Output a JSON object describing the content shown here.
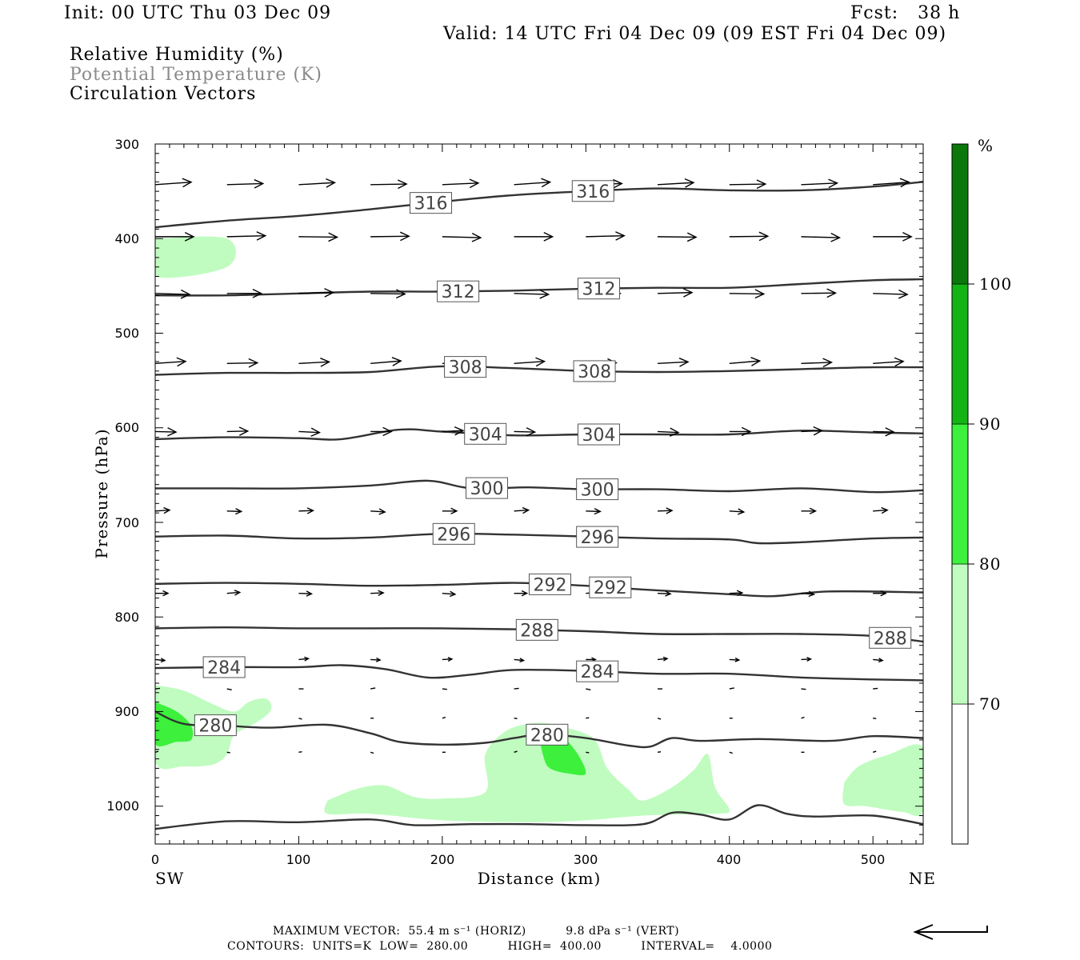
{
  "header": {
    "init": "Init: 00 UTC Thu 03 Dec 09",
    "fcst": "Fcst:   38 h",
    "valid": "Valid: 14 UTC Fri 04 Dec 09 (09 EST Fri 04 Dec 09)",
    "field1": "Relative Humidity (%)",
    "field2": "Potential Temperature (K)",
    "field3": "Circulation Vectors"
  },
  "axes": {
    "ylabel": "Pressure (hPa)",
    "xlabel": "Distance (km)",
    "left_end": "SW",
    "right_end": "NE",
    "x_ticks": [
      "0",
      "100",
      "200",
      "300",
      "400",
      "500"
    ],
    "y_ticks": [
      "300",
      "400",
      "500",
      "600",
      "700",
      "800",
      "900",
      "1000"
    ]
  },
  "colorbar": {
    "unit": "%",
    "levels": [
      "70",
      "80",
      "90",
      "100"
    ],
    "colors": [
      "#ffffff",
      "#c0fcc0",
      "#3cf03c",
      "#14b414",
      "#0a780a"
    ]
  },
  "footer": {
    "line1": "MAXIMUM VECTOR:  55.4 m s⁻¹ (HORIZ)          9.8 dPa s⁻¹ (VERT)",
    "line2": "CONTOURS:  UNITS=K  LOW=  280.00          HIGH=  400.00          INTERVAL=    4.0000"
  },
  "chart_data": {
    "type": "contour",
    "xlim": [
      0,
      535
    ],
    "ylim": [
      1040,
      300
    ],
    "y_scale": "linear-pressure",
    "isentropes": [
      {
        "theta": 316,
        "label_x": [
          192,
          305
        ],
        "points": [
          [
            0,
            388
          ],
          [
            50,
            381
          ],
          [
            100,
            376
          ],
          [
            150,
            369
          ],
          [
            200,
            361
          ],
          [
            250,
            354
          ],
          [
            300,
            350
          ],
          [
            350,
            347
          ],
          [
            400,
            349
          ],
          [
            450,
            349
          ],
          [
            500,
            345
          ],
          [
            535,
            340
          ]
        ]
      },
      {
        "theta": 312,
        "label_x": [
          211,
          309
        ],
        "points": [
          [
            0,
            460
          ],
          [
            50,
            460
          ],
          [
            100,
            458
          ],
          [
            150,
            456
          ],
          [
            200,
            456
          ],
          [
            250,
            455
          ],
          [
            300,
            453
          ],
          [
            350,
            452
          ],
          [
            400,
            452
          ],
          [
            450,
            448
          ],
          [
            500,
            444
          ],
          [
            535,
            443
          ]
        ]
      },
      {
        "theta": 308,
        "label_x": [
          216,
          306
        ],
        "points": [
          [
            0,
            544
          ],
          [
            50,
            542
          ],
          [
            100,
            542
          ],
          [
            150,
            541
          ],
          [
            200,
            535
          ],
          [
            250,
            537
          ],
          [
            300,
            540
          ],
          [
            350,
            541
          ],
          [
            400,
            540
          ],
          [
            450,
            538
          ],
          [
            500,
            536
          ],
          [
            535,
            536
          ]
        ]
      },
      {
        "theta": 304,
        "label_x": [
          230,
          309
        ],
        "points": [
          [
            0,
            612
          ],
          [
            50,
            610
          ],
          [
            100,
            611
          ],
          [
            130,
            612
          ],
          [
            170,
            602
          ],
          [
            200,
            604
          ],
          [
            250,
            608
          ],
          [
            300,
            607
          ],
          [
            350,
            607
          ],
          [
            400,
            607
          ],
          [
            450,
            603
          ],
          [
            500,
            605
          ],
          [
            535,
            606
          ]
        ]
      },
      {
        "theta": 300,
        "label_x": [
          231,
          308
        ],
        "points": [
          [
            0,
            664
          ],
          [
            50,
            664
          ],
          [
            100,
            664
          ],
          [
            150,
            661
          ],
          [
            190,
            656
          ],
          [
            220,
            664
          ],
          [
            260,
            663
          ],
          [
            300,
            665
          ],
          [
            350,
            665
          ],
          [
            400,
            667
          ],
          [
            450,
            664
          ],
          [
            500,
            668
          ],
          [
            535,
            666
          ]
        ]
      },
      {
        "theta": 296,
        "label_x": [
          208,
          308
        ],
        "points": [
          [
            0,
            715
          ],
          [
            50,
            714
          ],
          [
            100,
            717
          ],
          [
            150,
            716
          ],
          [
            200,
            712
          ],
          [
            250,
            713
          ],
          [
            300,
            715
          ],
          [
            350,
            717
          ],
          [
            400,
            718
          ],
          [
            420,
            722
          ],
          [
            450,
            721
          ],
          [
            500,
            717
          ],
          [
            535,
            716
          ]
        ]
      },
      {
        "theta": 292,
        "label_x": [
          275,
          317
        ],
        "points": [
          [
            0,
            765
          ],
          [
            50,
            764
          ],
          [
            100,
            765
          ],
          [
            150,
            767
          ],
          [
            200,
            766
          ],
          [
            250,
            764
          ],
          [
            300,
            767
          ],
          [
            340,
            771
          ],
          [
            400,
            776
          ],
          [
            430,
            778
          ],
          [
            470,
            773
          ],
          [
            535,
            774
          ]
        ]
      },
      {
        "theta": 288,
        "label_x": [
          266,
          512
        ],
        "points": [
          [
            0,
            812
          ],
          [
            50,
            811
          ],
          [
            100,
            812
          ],
          [
            150,
            812
          ],
          [
            200,
            812
          ],
          [
            250,
            813
          ],
          [
            300,
            815
          ],
          [
            350,
            818
          ],
          [
            400,
            818
          ],
          [
            450,
            818
          ],
          [
            500,
            820
          ],
          [
            535,
            826
          ]
        ]
      },
      {
        "theta": 284,
        "label_x": [
          48,
          308
        ],
        "points": [
          [
            0,
            854
          ],
          [
            50,
            853
          ],
          [
            100,
            853
          ],
          [
            130,
            851
          ],
          [
            160,
            855
          ],
          [
            190,
            864
          ],
          [
            220,
            861
          ],
          [
            250,
            856
          ],
          [
            300,
            857
          ],
          [
            350,
            860
          ],
          [
            400,
            860
          ],
          [
            450,
            864
          ],
          [
            500,
            866
          ],
          [
            535,
            867
          ]
        ]
      },
      {
        "theta": 280,
        "label_x": [
          42,
          273
        ],
        "points": [
          [
            0,
            900
          ],
          [
            20,
            913
          ],
          [
            50,
            915
          ],
          [
            80,
            917
          ],
          [
            120,
            914
          ],
          [
            150,
            923
          ],
          [
            170,
            932
          ],
          [
            200,
            935
          ],
          [
            230,
            933
          ],
          [
            250,
            928
          ],
          [
            270,
            924
          ],
          [
            300,
            928
          ],
          [
            330,
            936
          ],
          [
            345,
            937
          ],
          [
            360,
            928
          ],
          [
            380,
            931
          ],
          [
            420,
            929
          ],
          [
            470,
            931
          ],
          [
            500,
            926
          ],
          [
            535,
            928
          ]
        ]
      },
      {
        "theta": "surface",
        "label_x": [],
        "points": [
          [
            0,
            1024
          ],
          [
            50,
            1016
          ],
          [
            100,
            1017
          ],
          [
            150,
            1014
          ],
          [
            180,
            1020
          ],
          [
            220,
            1019
          ],
          [
            260,
            1019
          ],
          [
            300,
            1020
          ],
          [
            340,
            1019
          ],
          [
            360,
            1007
          ],
          [
            380,
            1009
          ],
          [
            400,
            1014
          ],
          [
            420,
            999
          ],
          [
            440,
            1008
          ],
          [
            460,
            1011
          ],
          [
            500,
            1010
          ],
          [
            535,
            1019
          ]
        ]
      }
    ],
    "rh_regions": [
      {
        "level": "70-80",
        "points": [
          [
            0,
            400
          ],
          [
            50,
            400
          ],
          [
            50,
            430
          ],
          [
            0,
            440
          ]
        ]
      },
      {
        "level": "70-80",
        "points": [
          [
            0,
            872
          ],
          [
            20,
            878
          ],
          [
            40,
            892
          ],
          [
            55,
            900
          ],
          [
            65,
            890
          ],
          [
            75,
            886
          ],
          [
            80,
            890
          ],
          [
            80,
            900
          ],
          [
            70,
            912
          ],
          [
            55,
            925
          ],
          [
            50,
            945
          ],
          [
            40,
            956
          ],
          [
            20,
            958
          ],
          [
            0,
            953
          ]
        ]
      },
      {
        "level": "80-90",
        "points": [
          [
            0,
            890
          ],
          [
            15,
            900
          ],
          [
            25,
            915
          ],
          [
            25,
            930
          ],
          [
            15,
            932
          ],
          [
            0,
            934
          ]
        ]
      },
      {
        "level": "70-80",
        "points": [
          [
            120,
            994
          ],
          [
            140,
            982
          ],
          [
            160,
            978
          ],
          [
            180,
            990
          ],
          [
            200,
            992
          ],
          [
            230,
            985
          ],
          [
            230,
            945
          ],
          [
            245,
            920
          ],
          [
            265,
            912
          ],
          [
            280,
            915
          ],
          [
            305,
            928
          ],
          [
            315,
            960
          ],
          [
            330,
            983
          ],
          [
            340,
            994
          ],
          [
            360,
            980
          ],
          [
            375,
            962
          ],
          [
            385,
            945
          ],
          [
            390,
            980
          ],
          [
            400,
            1004
          ],
          [
            390,
            1008
          ],
          [
            340,
            1010
          ],
          [
            300,
            1015
          ],
          [
            260,
            1017
          ],
          [
            200,
            1015
          ],
          [
            150,
            1008
          ],
          [
            120,
            1008
          ]
        ]
      },
      {
        "level": "80-90",
        "points": [
          [
            267,
            920
          ],
          [
            280,
            922
          ],
          [
            293,
            942
          ],
          [
            300,
            965
          ],
          [
            290,
            966
          ],
          [
            275,
            960
          ],
          [
            270,
            945
          ]
        ]
      },
      {
        "level": "70-80",
        "points": [
          [
            480,
            975
          ],
          [
            490,
            958
          ],
          [
            510,
            946
          ],
          [
            535,
            938
          ],
          [
            535,
            1005
          ],
          [
            520,
            1006
          ],
          [
            495,
            1000
          ],
          [
            480,
            998
          ]
        ]
      }
    ],
    "vector_rows": [
      {
        "p": 343,
        "dx": 45,
        "dy": -2
      },
      {
        "p": 398,
        "dx": 48,
        "dy": 0
      },
      {
        "p": 458,
        "dx": 43,
        "dy": 0
      },
      {
        "p": 532,
        "dx": 38,
        "dy": -2
      },
      {
        "p": 604,
        "dx": 26,
        "dy": 0
      },
      {
        "p": 688,
        "dx": 18,
        "dy": 0
      },
      {
        "p": 775,
        "dx": 16,
        "dy": 0
      },
      {
        "p": 845,
        "dx": 12,
        "dy": 0
      },
      {
        "p": 876,
        "dx": 6,
        "dy": 0
      },
      {
        "p": 907,
        "dx": 4,
        "dy": 0
      },
      {
        "p": 943,
        "dx": 4,
        "dy": 0
      }
    ],
    "vector_x": [
      0,
      50,
      100,
      150,
      200,
      250,
      300,
      350,
      400,
      450,
      500,
      535
    ]
  }
}
